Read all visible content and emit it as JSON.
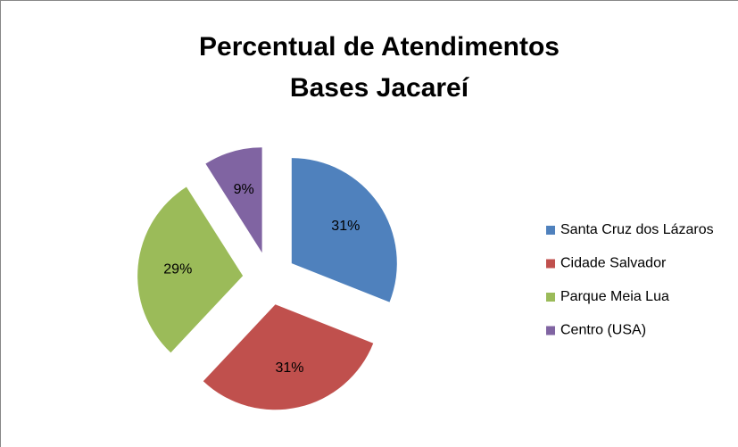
{
  "chart_data": {
    "type": "pie",
    "title": [
      "Percentual de Atendimentos",
      "Bases Jacareí"
    ],
    "categories": [
      "Santa Cruz dos Lázaros",
      "Cidade Salvador",
      "Parque Meia Lua",
      "Centro (USA)"
    ],
    "values": [
      31,
      31,
      29,
      9
    ],
    "value_labels": [
      "31%",
      "31%",
      "29%",
      "9%"
    ],
    "colors": [
      "#4f81bd",
      "#c0504d",
      "#9bbb59",
      "#8064a2"
    ],
    "legend": "right"
  }
}
